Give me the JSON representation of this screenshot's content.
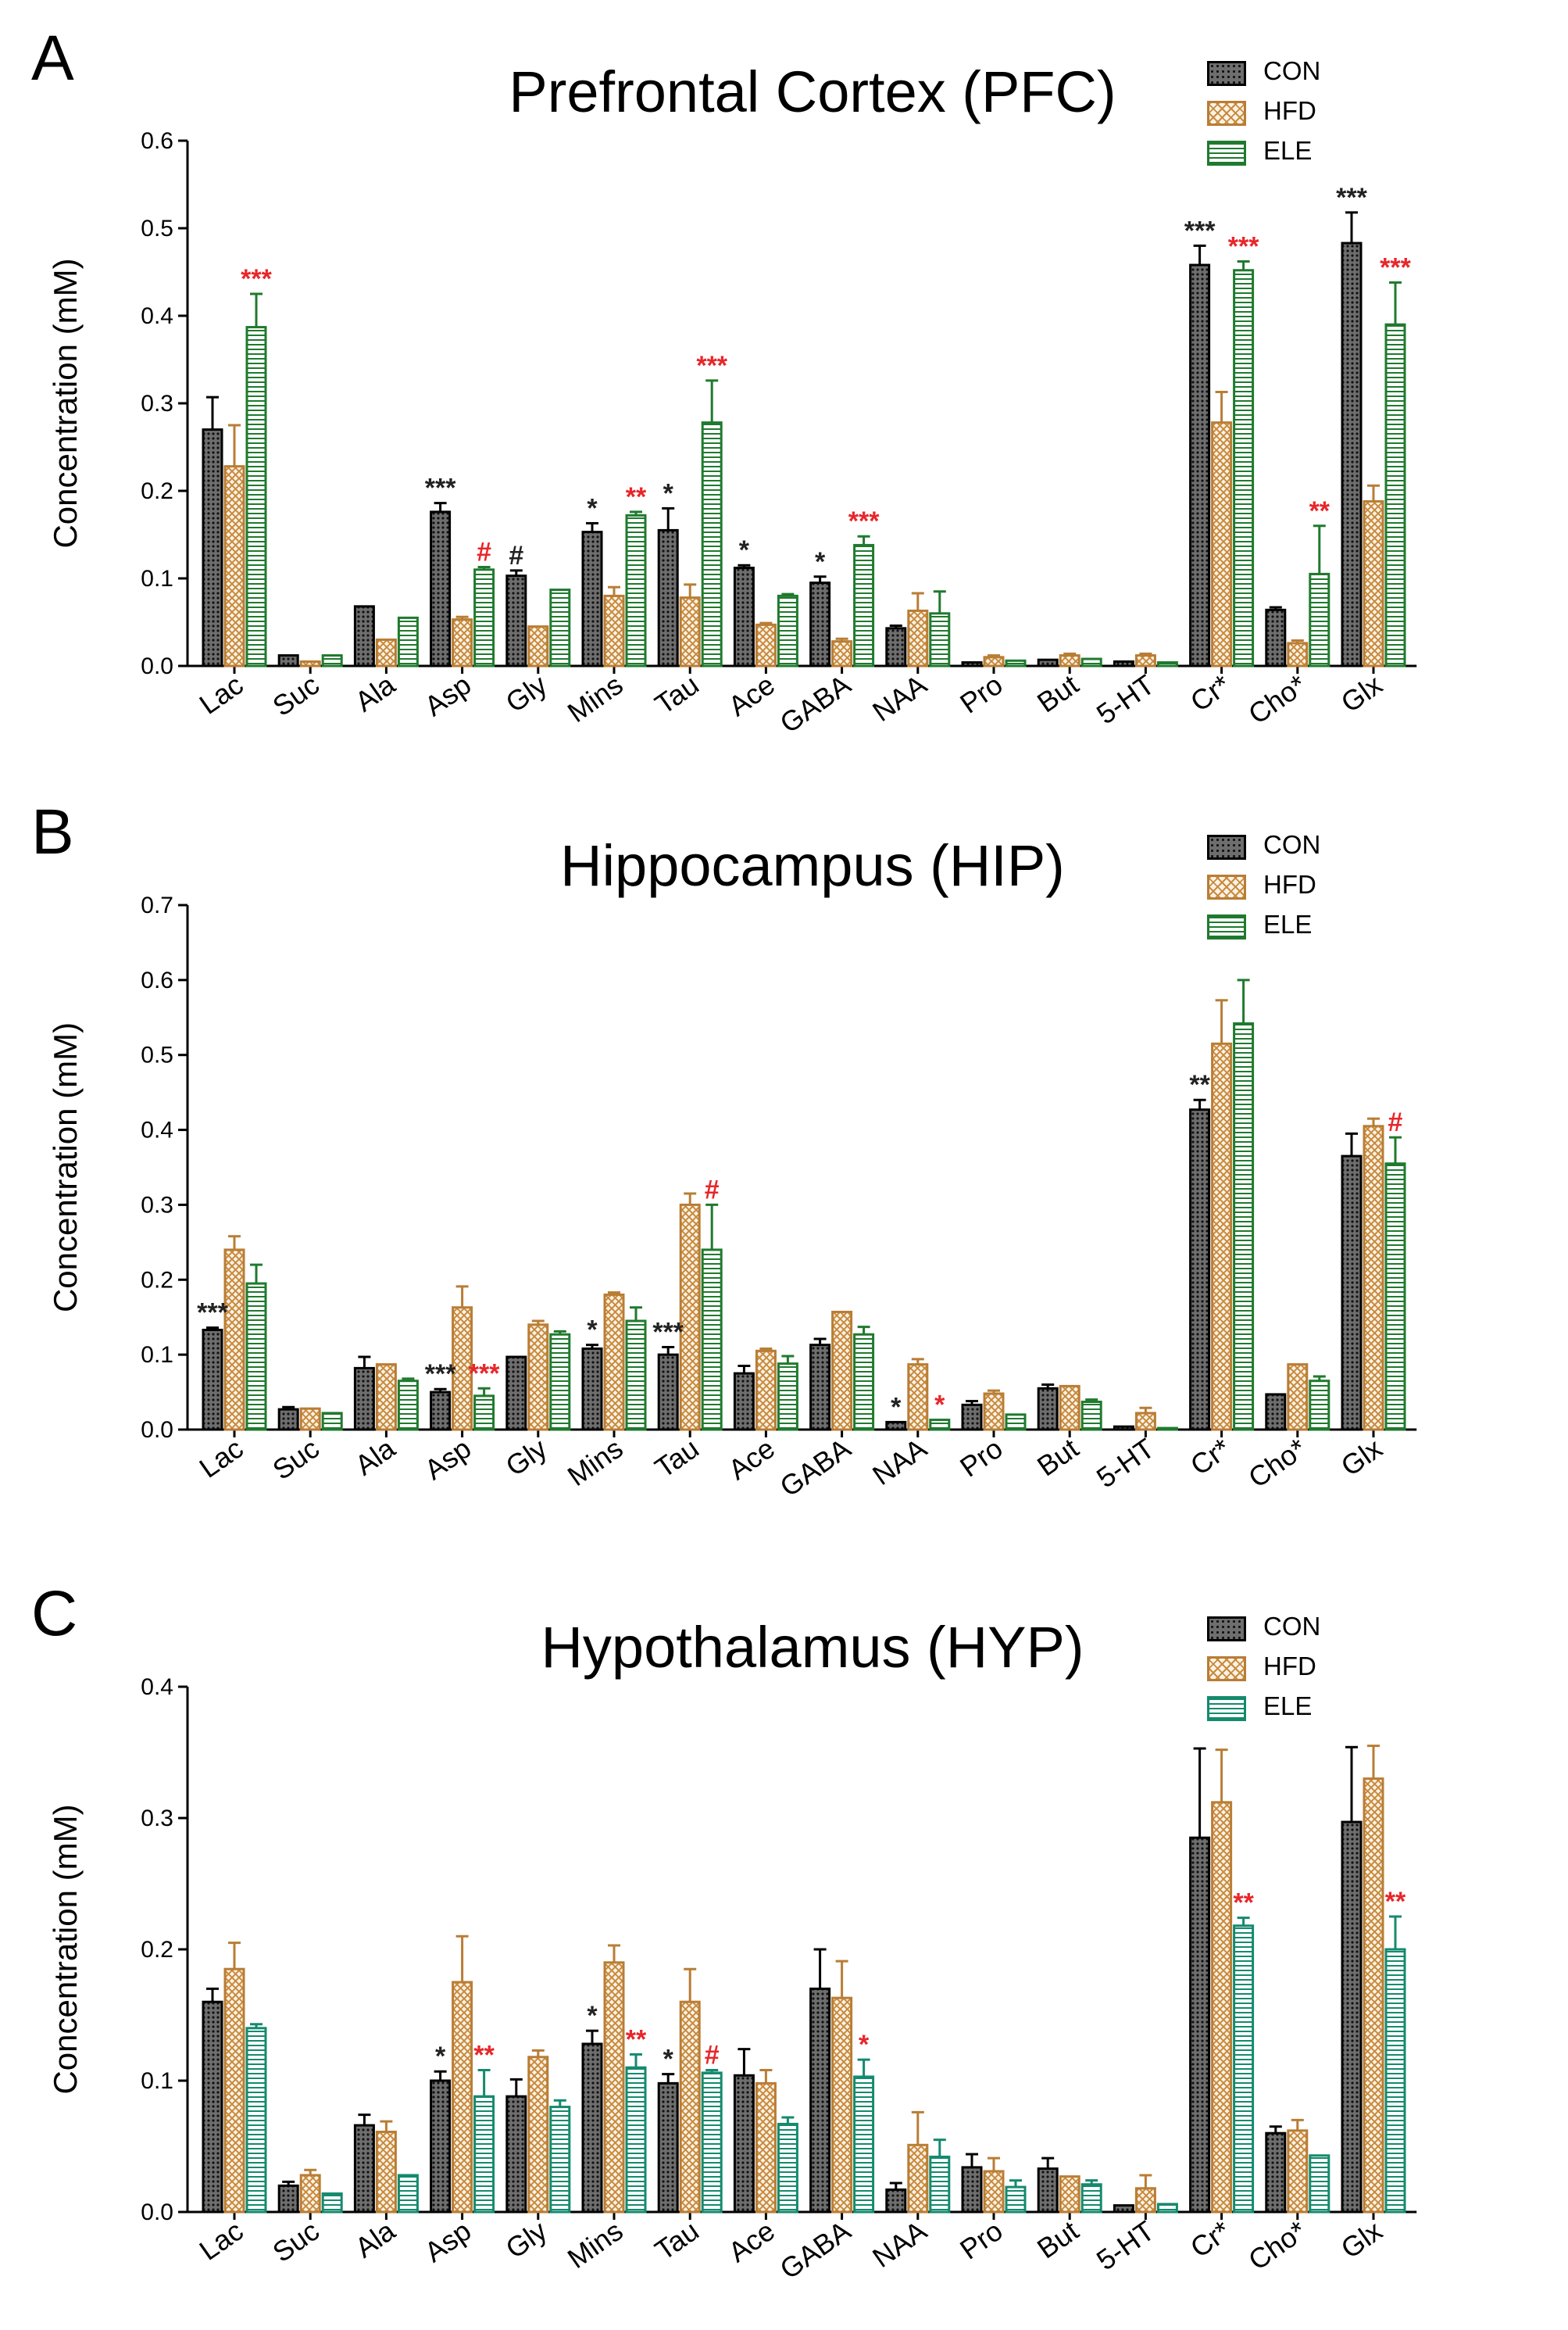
{
  "chart_data": [
    {
      "type": "bar",
      "panel": "A",
      "title": "Prefrontal Cortex (PFC)",
      "ylabel": "Concentration (mM)",
      "xlabel": "",
      "ylim": [
        0,
        0.6
      ],
      "yticks": [
        0.0,
        0.1,
        0.2,
        0.3,
        0.4,
        0.5,
        0.6
      ],
      "tick_labels": [
        "0.0",
        "0.1",
        "0.2",
        "0.3",
        "0.4",
        "0.5",
        "0.6"
      ],
      "categories": [
        "Lac",
        "Suc",
        "Ala",
        "Asp",
        "Gly",
        "Mins",
        "Tau",
        "Ace",
        "GABA",
        "NAA",
        "Pro",
        "But",
        "5-HT",
        "Cr*",
        "Cho*",
        "Glx"
      ],
      "legend_position": "top-right",
      "series": [
        {
          "name": "CON",
          "values": [
            0.27,
            0.012,
            0.068,
            0.176,
            0.103,
            0.153,
            0.155,
            0.112,
            0.095,
            0.043,
            0.004,
            0.007,
            0.005,
            0.458,
            0.064,
            0.483
          ],
          "errors": [
            0.037,
            0.0,
            0.0,
            0.01,
            0.006,
            0.01,
            0.025,
            0.003,
            0.007,
            0.003,
            0.0,
            0.0,
            0.0,
            0.022,
            0.003,
            0.035
          ]
        },
        {
          "name": "HFD",
          "values": [
            0.228,
            0.005,
            0.03,
            0.053,
            0.045,
            0.08,
            0.078,
            0.047,
            0.028,
            0.063,
            0.01,
            0.012,
            0.012,
            0.278,
            0.026,
            0.188
          ],
          "errors": [
            0.047,
            0.0,
            0.0,
            0.003,
            0.0,
            0.01,
            0.015,
            0.002,
            0.003,
            0.02,
            0.002,
            0.002,
            0.002,
            0.035,
            0.003,
            0.018
          ]
        },
        {
          "name": "ELE",
          "values": [
            0.387,
            0.012,
            0.055,
            0.11,
            0.087,
            0.172,
            0.278,
            0.08,
            0.138,
            0.06,
            0.006,
            0.008,
            0.004,
            0.452,
            0.105,
            0.39
          ],
          "errors": [
            0.038,
            0.0,
            0.0,
            0.003,
            0.0,
            0.004,
            0.048,
            0.002,
            0.01,
            0.025,
            0.0,
            0.0,
            0.0,
            0.01,
            0.055,
            0.048
          ]
        }
      ],
      "annotations": [
        {
          "category": "Lac",
          "series": "ELE",
          "text": "***",
          "color": "#e8262a"
        },
        {
          "category": "Asp",
          "series": "CON",
          "text": "***",
          "color": "#222222"
        },
        {
          "category": "Asp",
          "series": "ELE",
          "text": "#",
          "color": "#e8262a"
        },
        {
          "category": "Gly",
          "series": "CON",
          "text": "#",
          "color": "#222222"
        },
        {
          "category": "Mins",
          "series": "CON",
          "text": "*",
          "color": "#222222"
        },
        {
          "category": "Mins",
          "series": "ELE",
          "text": "**",
          "color": "#e8262a"
        },
        {
          "category": "Tau",
          "series": "CON",
          "text": "*",
          "color": "#222222"
        },
        {
          "category": "Tau",
          "series": "ELE",
          "text": "***",
          "color": "#e8262a"
        },
        {
          "category": "Ace",
          "series": "CON",
          "text": "*",
          "color": "#222222"
        },
        {
          "category": "GABA",
          "series": "CON",
          "text": "*",
          "color": "#222222"
        },
        {
          "category": "GABA",
          "series": "ELE",
          "text": "***",
          "color": "#e8262a"
        },
        {
          "category": "Cr*",
          "series": "CON",
          "text": "***",
          "color": "#222222"
        },
        {
          "category": "Cr*",
          "series": "ELE",
          "text": "***",
          "color": "#e8262a"
        },
        {
          "category": "Cho*",
          "series": "ELE",
          "text": "**",
          "color": "#e8262a"
        },
        {
          "category": "Glx",
          "series": "CON",
          "text": "***",
          "color": "#222222"
        },
        {
          "category": "Glx",
          "series": "ELE",
          "text": "***",
          "color": "#e8262a"
        }
      ]
    },
    {
      "type": "bar",
      "panel": "B",
      "title": "Hippocampus (HIP)",
      "ylabel": "Concentration (mM)",
      "xlabel": "",
      "ylim": [
        0,
        0.7
      ],
      "yticks": [
        0.0,
        0.1,
        0.2,
        0.3,
        0.4,
        0.5,
        0.6,
        0.7
      ],
      "tick_labels": [
        "0.0",
        "0.1",
        "0.2",
        "0.3",
        "0.4",
        "0.5",
        "0.6",
        "0.7"
      ],
      "categories": [
        "Lac",
        "Suc",
        "Ala",
        "Asp",
        "Gly",
        "Mins",
        "Tau",
        "Ace",
        "GABA",
        "NAA",
        "Pro",
        "But",
        "5-HT",
        "Cr*",
        "Cho*",
        "Glx"
      ],
      "legend_position": "top-right",
      "series": [
        {
          "name": "CON",
          "values": [
            0.133,
            0.027,
            0.082,
            0.05,
            0.097,
            0.108,
            0.1,
            0.075,
            0.113,
            0.01,
            0.033,
            0.055,
            0.004,
            0.427,
            0.047,
            0.365
          ],
          "errors": [
            0.003,
            0.003,
            0.015,
            0.004,
            0.0,
            0.005,
            0.01,
            0.01,
            0.008,
            0.0,
            0.005,
            0.005,
            0.0,
            0.013,
            0.0,
            0.03
          ]
        },
        {
          "name": "HFD",
          "values": [
            0.24,
            0.028,
            0.087,
            0.163,
            0.14,
            0.18,
            0.3,
            0.105,
            0.157,
            0.087,
            0.048,
            0.058,
            0.022,
            0.515,
            0.087,
            0.405
          ],
          "errors": [
            0.018,
            0.0,
            0.0,
            0.028,
            0.005,
            0.003,
            0.015,
            0.003,
            0.0,
            0.007,
            0.004,
            0.0,
            0.007,
            0.058,
            0.0,
            0.01
          ]
        },
        {
          "name": "ELE",
          "values": [
            0.195,
            0.022,
            0.065,
            0.045,
            0.127,
            0.145,
            0.24,
            0.088,
            0.127,
            0.013,
            0.02,
            0.037,
            0.002,
            0.542,
            0.065,
            0.355
          ],
          "errors": [
            0.025,
            0.0,
            0.003,
            0.01,
            0.004,
            0.018,
            0.06,
            0.01,
            0.01,
            0.0,
            0.0,
            0.003,
            0.0,
            0.058,
            0.006,
            0.035
          ]
        }
      ],
      "annotations": [
        {
          "category": "Lac",
          "series": "CON",
          "text": "***",
          "color": "#222222"
        },
        {
          "category": "Asp",
          "series": "CON",
          "text": "***",
          "color": "#222222"
        },
        {
          "category": "Asp",
          "series": "ELE",
          "text": "***",
          "color": "#e8262a"
        },
        {
          "category": "Mins",
          "series": "CON",
          "text": "*",
          "color": "#222222"
        },
        {
          "category": "Tau",
          "series": "CON",
          "text": "***",
          "color": "#222222"
        },
        {
          "category": "Tau",
          "series": "ELE",
          "text": "#",
          "color": "#e8262a"
        },
        {
          "category": "NAA",
          "series": "CON",
          "text": "*",
          "color": "#222222"
        },
        {
          "category": "NAA",
          "series": "ELE",
          "text": "*",
          "color": "#e8262a"
        },
        {
          "category": "Cr*",
          "series": "CON",
          "text": "**",
          "color": "#222222"
        },
        {
          "category": "Glx",
          "series": "ELE",
          "text": "#",
          "color": "#e8262a"
        }
      ]
    },
    {
      "type": "bar",
      "panel": "C",
      "title": "Hypothalamus (HYP)",
      "ylabel": "Concentration (mM)",
      "xlabel": "",
      "ylim": [
        0,
        0.4
      ],
      "yticks": [
        0.0,
        0.1,
        0.2,
        0.3,
        0.4
      ],
      "tick_labels": [
        "0.0",
        "0.1",
        "0.2",
        "0.3",
        "0.4"
      ],
      "categories": [
        "Lac",
        "Suc",
        "Ala",
        "Asp",
        "Gly",
        "Mins",
        "Tau",
        "Ace",
        "GABA",
        "NAA",
        "Pro",
        "But",
        "5-HT",
        "Cr*",
        "Cho*",
        "Glx"
      ],
      "legend_position": "top-right",
      "series": [
        {
          "name": "CON",
          "values": [
            0.16,
            0.02,
            0.066,
            0.1,
            0.088,
            0.128,
            0.098,
            0.104,
            0.17,
            0.017,
            0.034,
            0.033,
            0.005,
            0.285,
            0.06,
            0.297
          ],
          "errors": [
            0.01,
            0.003,
            0.008,
            0.007,
            0.013,
            0.01,
            0.007,
            0.02,
            0.03,
            0.005,
            0.01,
            0.008,
            0.0,
            0.068,
            0.005,
            0.057
          ]
        },
        {
          "name": "HFD",
          "values": [
            0.185,
            0.028,
            0.061,
            0.175,
            0.118,
            0.19,
            0.16,
            0.098,
            0.163,
            0.051,
            0.031,
            0.027,
            0.018,
            0.312,
            0.062,
            0.33
          ],
          "errors": [
            0.02,
            0.004,
            0.008,
            0.035,
            0.005,
            0.013,
            0.025,
            0.01,
            0.028,
            0.025,
            0.01,
            0.0,
            0.01,
            0.04,
            0.008,
            0.025
          ]
        },
        {
          "name": "ELE",
          "values": [
            0.14,
            0.014,
            0.028,
            0.088,
            0.08,
            0.11,
            0.106,
            0.067,
            0.103,
            0.042,
            0.019,
            0.021,
            0.006,
            0.218,
            0.043,
            0.2
          ],
          "errors": [
            0.003,
            0.0,
            0.0,
            0.02,
            0.005,
            0.01,
            0.002,
            0.005,
            0.013,
            0.013,
            0.005,
            0.003,
            0.0,
            0.006,
            0.0,
            0.025
          ]
        }
      ],
      "annotations": [
        {
          "category": "Asp",
          "series": "CON",
          "text": "*",
          "color": "#222222"
        },
        {
          "category": "Asp",
          "series": "ELE",
          "text": "**",
          "color": "#e8262a"
        },
        {
          "category": "Mins",
          "series": "CON",
          "text": "*",
          "color": "#222222"
        },
        {
          "category": "Mins",
          "series": "ELE",
          "text": "**",
          "color": "#e8262a"
        },
        {
          "category": "Tau",
          "series": "CON",
          "text": "*",
          "color": "#222222"
        },
        {
          "category": "Tau",
          "series": "ELE",
          "text": "#",
          "color": "#e8262a"
        },
        {
          "category": "GABA",
          "series": "ELE",
          "text": "*",
          "color": "#e8262a"
        },
        {
          "category": "Cr*",
          "series": "ELE",
          "text": "**",
          "color": "#e8262a"
        },
        {
          "category": "Glx",
          "series": "ELE",
          "text": "**",
          "color": "#e8262a"
        }
      ]
    }
  ],
  "colors": {
    "CON_fill": "#6e6e6e",
    "CON_edge": "#000000",
    "HFD_fill": "#fbf2e6",
    "HFD_edge": "#b97d35",
    "ELE_fill": "#ffffff",
    "ELE_edge": "#1f7a2e",
    "ELE_edge_C": "#148a6e",
    "sig_black": "#222222",
    "sig_red": "#e8262a"
  }
}
